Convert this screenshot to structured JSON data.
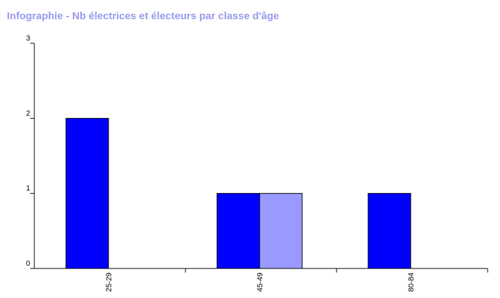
{
  "chart_data": {
    "type": "bar",
    "title": "Infographie - Nb électrices et électeurs par classe d'âge",
    "categories": [
      "25-29",
      "45-49",
      "80-84"
    ],
    "series": [
      {
        "color": "#0000ff",
        "values": [
          2,
          1,
          1
        ]
      },
      {
        "color": "#9999ff",
        "values": [
          0,
          1,
          0
        ]
      }
    ],
    "ylim": [
      0,
      3
    ],
    "yticks": [
      0,
      1,
      2,
      3
    ]
  }
}
